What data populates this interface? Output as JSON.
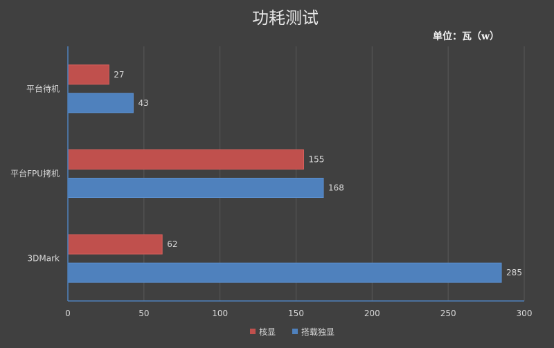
{
  "chart_data": {
    "type": "bar",
    "orientation": "horizontal",
    "title": "功耗测试",
    "unit_label": "单位：瓦（w）",
    "categories": [
      "平台待机",
      "平台FPU拷机",
      "3DMark"
    ],
    "series": [
      {
        "name": "核显",
        "values": [
          27,
          155,
          62
        ],
        "color": "#c0504d"
      },
      {
        "name": "搭载独显",
        "values": [
          43,
          168,
          285
        ],
        "color": "#4f81bd"
      }
    ],
    "xlim": [
      0,
      300
    ],
    "xticks": [
      0,
      50,
      100,
      150,
      200,
      250,
      300
    ],
    "grid": true,
    "legend_position": "bottom"
  }
}
